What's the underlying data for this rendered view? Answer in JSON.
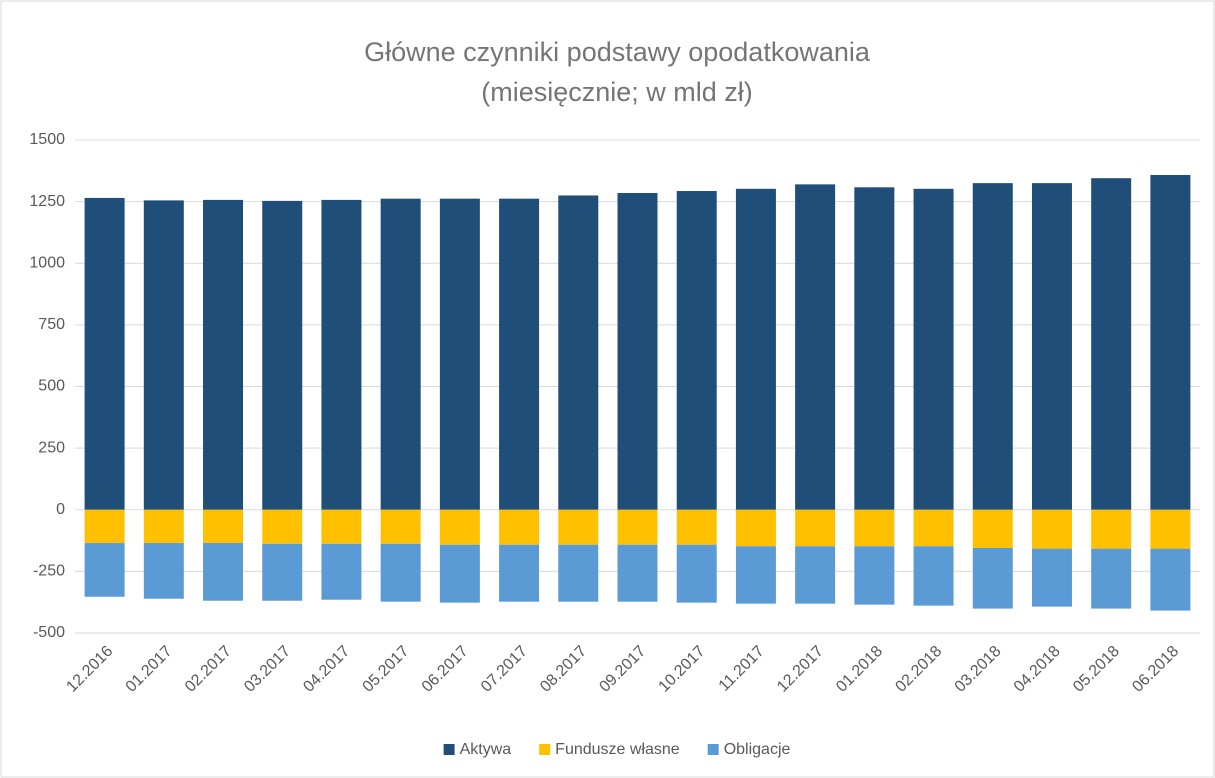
{
  "chart_data": {
    "type": "bar",
    "stacked": true,
    "title": "Główne czynniki podstawy opodatkowania",
    "subtitle": "(miesięcznie; w mld zł)",
    "categories": [
      "12.2016",
      "01.2017",
      "02.2017",
      "03.2017",
      "04.2017",
      "05.2017",
      "06.2017",
      "07.2017",
      "08.2017",
      "09.2017",
      "10.2017",
      "11.2017",
      "12.2017",
      "01.2018",
      "02.2018",
      "03.2018",
      "04.2018",
      "05.2018",
      "06.2018"
    ],
    "series": [
      {
        "name": "Aktywa",
        "color": "#1f4e79",
        "values": [
          1265,
          1255,
          1257,
          1253,
          1257,
          1262,
          1262,
          1262,
          1275,
          1285,
          1293,
          1302,
          1320,
          1308,
          1302,
          1325,
          1325,
          1345,
          1358
        ]
      },
      {
        "name": "Fundusze własne",
        "color": "#ffc000",
        "values": [
          -135,
          -135,
          -135,
          -138,
          -138,
          -138,
          -142,
          -142,
          -142,
          -142,
          -142,
          -148,
          -148,
          -148,
          -148,
          -155,
          -158,
          -158,
          -158
        ]
      },
      {
        "name": "Obligacje",
        "color": "#5b9bd5",
        "values": [
          -218,
          -226,
          -234,
          -231,
          -227,
          -235,
          -235,
          -231,
          -231,
          -231,
          -235,
          -233,
          -233,
          -237,
          -241,
          -246,
          -235,
          -243,
          -251
        ]
      }
    ],
    "ylim": [
      -500,
      1500
    ],
    "yticks": [
      1500,
      1250,
      1000,
      750,
      500,
      250,
      0,
      -250,
      -500
    ],
    "grid": true,
    "legend": "bottom"
  }
}
